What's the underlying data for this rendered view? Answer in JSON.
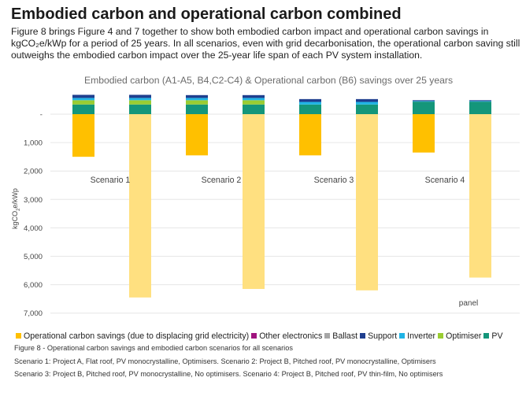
{
  "page": {
    "heading": "Embodied carbon and operational carbon combined",
    "intro": "Figure 8 brings Figure 4 and 7 together to show both embodied carbon impact and operational carbon savings in kgCO₂e/kWp for a period of 25 years. In all scenarios, even with grid decarbonisation, the operational carbon saving still outweighs the embodied carbon impact over the 25-year life span of each PV system installation.",
    "caption": "Figure 8 - Operational carbon savings and embodied carbon scenarios for all scenarios",
    "notes": [
      "Scenario 1: Project A, Flat roof, PV monocrystalline, Optimisers. Scenario 2: Project B, Pitched roof, PV monocrystalline, Optimisers",
      "Scenario 3: Project B, Pitched roof, PV monocrystalline,  No optimisers. Scenario 4: Project B, Pitched roof, PV thin-film,  No optimisers"
    ]
  },
  "chart_data": {
    "type": "bar",
    "stacked": true,
    "title": "Embodied carbon (A1-A5, B4,C2-C4) & Operational carbon (B6) savings over 25 years",
    "ylabel": "kgCO2e/kWp",
    "ylim": [
      -7000,
      800
    ],
    "y_inverted_labels": true,
    "y_ticks": [
      {
        "value": 0,
        "label": "-"
      },
      {
        "value": -1000,
        "label": "1,000"
      },
      {
        "value": -2000,
        "label": "2,000"
      },
      {
        "value": -3000,
        "label": "3,000"
      },
      {
        "value": -4000,
        "label": "4,000"
      },
      {
        "value": -5000,
        "label": "5,000"
      },
      {
        "value": -6000,
        "label": "6,000"
      },
      {
        "value": -7000,
        "label": "7,000"
      }
    ],
    "grid": true,
    "legend_position": "bottom",
    "groups": [
      "Scenario 1",
      "Scenario 2",
      "Scenario 3",
      "Scenario 4"
    ],
    "bars": [
      {
        "group": "Scenario 1",
        "label": "",
        "segments": {
          "Operational carbon savings": -1500,
          "PV": 340,
          "Optimiser": 150,
          "Inverter": 80,
          "Support": 110,
          "Ballast": 0,
          "Other electronics": 0
        }
      },
      {
        "group": "Scenario 1",
        "label": "",
        "segments": {
          "Operational carbon savings": -6450,
          "PV": 340,
          "Optimiser": 150,
          "Inverter": 80,
          "Support": 110,
          "Ballast": 0,
          "Other electronics": 0
        }
      },
      {
        "group": "Scenario 2",
        "label": "",
        "segments": {
          "Operational carbon savings": -1450,
          "PV": 340,
          "Optimiser": 150,
          "Inverter": 80,
          "Support": 100,
          "Ballast": 0,
          "Other electronics": 0
        }
      },
      {
        "group": "Scenario 2",
        "label": "",
        "segments": {
          "Operational carbon savings": -6150,
          "PV": 340,
          "Optimiser": 150,
          "Inverter": 80,
          "Support": 100,
          "Ballast": 0,
          "Other electronics": 0
        }
      },
      {
        "group": "Scenario 3",
        "label": "",
        "segments": {
          "Operational carbon savings": -1450,
          "PV": 340,
          "Optimiser": 0,
          "Inverter": 90,
          "Support": 100,
          "Ballast": 0,
          "Other electronics": 0
        }
      },
      {
        "group": "Scenario 3",
        "label": "",
        "segments": {
          "Operational carbon savings": -6200,
          "PV": 340,
          "Optimiser": 0,
          "Inverter": 90,
          "Support": 100,
          "Ballast": 0,
          "Other electronics": 0
        }
      },
      {
        "group": "Scenario 4",
        "label": "",
        "segments": {
          "Operational carbon savings": -1350,
          "PV": 440,
          "Optimiser": 0,
          "Inverter": 20,
          "Support": 30,
          "Ballast": 0,
          "Other electronics": 0
        }
      },
      {
        "group": "Scenario 4",
        "label": "panel",
        "segments": {
          "Operational carbon savings": -5750,
          "PV": 440,
          "Optimiser": 0,
          "Inverter": 20,
          "Support": 30,
          "Ballast": 0,
          "Other electronics": 0
        }
      }
    ],
    "series": [
      {
        "name": "Operational carbon savings (due to displacing grid electricity)",
        "key": "Operational carbon savings",
        "color": "#ffc000"
      },
      {
        "name": "Other electronics",
        "key": "Other electronics",
        "color": "#a0147f"
      },
      {
        "name": "Ballast",
        "key": "Ballast",
        "color": "#a6a6a6"
      },
      {
        "name": "Support",
        "key": "Support",
        "color": "#1f3f8f"
      },
      {
        "name": "Inverter",
        "key": "Inverter",
        "color": "#1fb4e6"
      },
      {
        "name": "Optimiser",
        "key": "Optimiser",
        "color": "#9acd32"
      },
      {
        "name": "PV",
        "key": "PV",
        "color": "#14967a"
      }
    ],
    "colors": {
      "operational_pale": "#ffe080",
      "gridline": "#e6e6e6",
      "title_color": "#6b6b6b"
    }
  }
}
